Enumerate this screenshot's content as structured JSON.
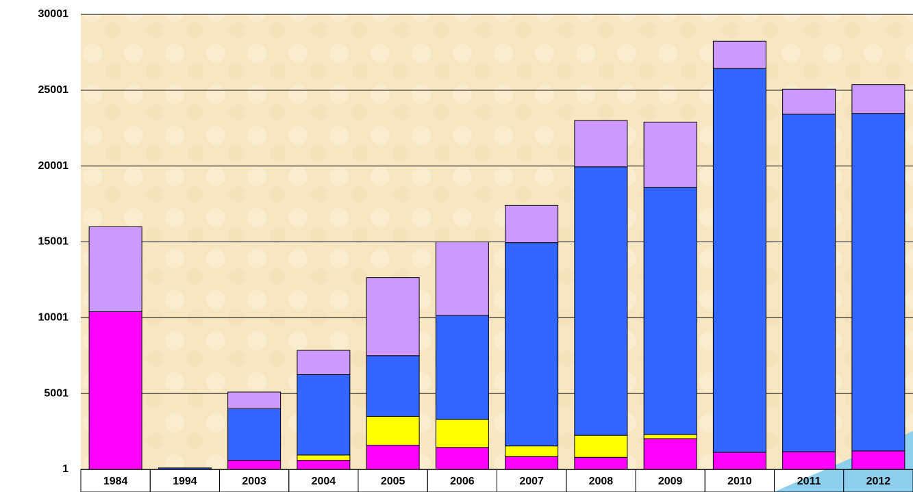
{
  "chart_data": {
    "type": "stacked_bar",
    "categories": [
      "1984",
      "1994",
      "2003",
      "2004",
      "2005",
      "2006",
      "2007",
      "2008",
      "2009",
      "2010",
      "2011",
      "2012"
    ],
    "series": [
      {
        "color": "#ff00ff",
        "values": [
          10400,
          0,
          600,
          600,
          1600,
          1450,
          850,
          800,
          2030,
          1130,
          1170,
          1220
        ]
      },
      {
        "color": "#ffff00",
        "values": [
          0,
          0,
          0,
          350,
          1900,
          1850,
          700,
          1450,
          270,
          0,
          0,
          0
        ]
      },
      {
        "color": "#3366ff",
        "values": [
          0,
          100,
          3400,
          5300,
          4000,
          6850,
          13400,
          17700,
          16300,
          25300,
          22250,
          22250
        ]
      },
      {
        "color": "#cc99ff",
        "values": [
          5600,
          0,
          1100,
          1600,
          5150,
          4850,
          2450,
          3050,
          4300,
          1800,
          1650,
          1900
        ]
      }
    ],
    "ylim": [
      1,
      30001
    ],
    "yticks": [
      1,
      5001,
      10001,
      15001,
      20001,
      25001,
      30001
    ],
    "grid": true
  }
}
